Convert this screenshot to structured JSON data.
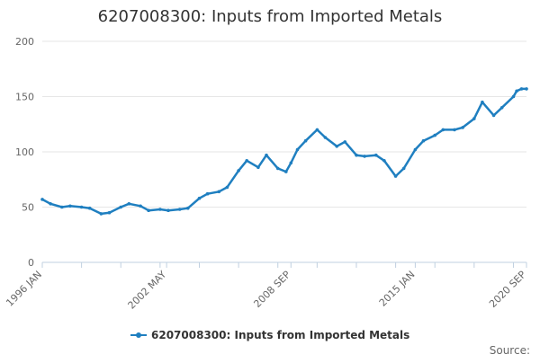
{
  "chart_data": {
    "type": "line",
    "title": "6207008300: Inputs from Imported Metals",
    "xlabel": "",
    "ylabel": "",
    "ylim": [
      0,
      200
    ],
    "yticks": [
      0,
      50,
      100,
      150,
      200
    ],
    "xlim": [
      "1996-01",
      "2020-09"
    ],
    "xticks": [
      "1996 JAN",
      "2002 MAY",
      "2008 SEP",
      "2015 JAN",
      "2020 SEP"
    ],
    "grid": true,
    "legend_position": "bottom",
    "series": [
      {
        "name": "6207008300: Inputs from Imported Metals",
        "color": "#1f7fc0",
        "x": [
          "1996-01",
          "1996-06",
          "1997-01",
          "1997-06",
          "1998-01",
          "1998-06",
          "1999-01",
          "1999-06",
          "2000-01",
          "2000-06",
          "2001-01",
          "2001-06",
          "2002-01",
          "2002-06",
          "2003-01",
          "2003-06",
          "2004-01",
          "2004-06",
          "2005-01",
          "2005-06",
          "2006-01",
          "2006-06",
          "2007-01",
          "2007-06",
          "2008-01",
          "2008-06",
          "2008-09",
          "2009-01",
          "2009-06",
          "2010-01",
          "2010-06",
          "2011-01",
          "2011-06",
          "2012-01",
          "2012-06",
          "2013-01",
          "2013-06",
          "2014-01",
          "2014-06",
          "2015-01",
          "2015-06",
          "2016-01",
          "2016-06",
          "2017-01",
          "2017-06",
          "2018-01",
          "2018-06",
          "2019-01",
          "2019-06",
          "2020-01",
          "2020-03",
          "2020-06",
          "2020-09"
        ],
        "values": [
          57,
          53,
          50,
          51,
          50,
          49,
          44,
          45,
          50,
          53,
          51,
          47,
          48,
          47,
          48,
          49,
          58,
          62,
          64,
          68,
          83,
          92,
          86,
          97,
          85,
          82,
          90,
          102,
          110,
          120,
          113,
          105,
          109,
          97,
          96,
          97,
          92,
          78,
          85,
          102,
          110,
          115,
          120,
          120,
          122,
          130,
          145,
          133,
          140,
          150,
          155,
          157,
          157
        ]
      }
    ]
  },
  "legend": {
    "label": "6207008300: Inputs from Imported Metals"
  },
  "source": {
    "label": "Source:"
  }
}
